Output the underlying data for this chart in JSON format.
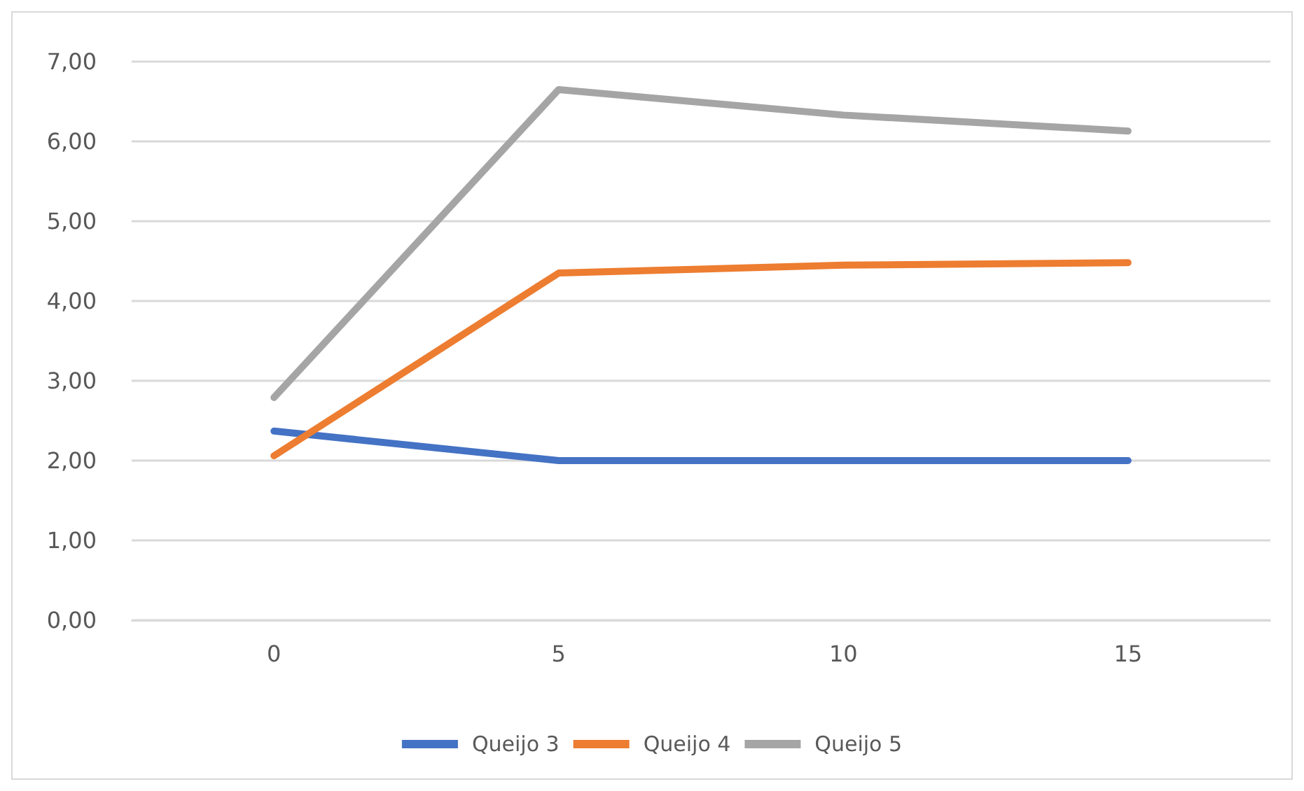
{
  "chart_data": {
    "type": "line",
    "categories": [
      "0",
      "5",
      "10",
      "15"
    ],
    "series": [
      {
        "name": "Queijo 3",
        "color": "#4472c4",
        "values": [
          2.37,
          2.0,
          2.0,
          2.0
        ]
      },
      {
        "name": "Queijo 4",
        "color": "#ed7d31",
        "values": [
          2.06,
          4.35,
          4.45,
          4.48
        ]
      },
      {
        "name": "Queijo 5",
        "color": "#a5a5a5",
        "values": [
          2.79,
          6.65,
          6.33,
          6.13
        ]
      }
    ],
    "ylim": [
      0,
      7
    ],
    "yticks": [
      {
        "value": 0,
        "label": "0,00"
      },
      {
        "value": 1,
        "label": "1,00"
      },
      {
        "value": 2,
        "label": "2,00"
      },
      {
        "value": 3,
        "label": "3,00"
      },
      {
        "value": 4,
        "label": "4,00"
      },
      {
        "value": 5,
        "label": "5,00"
      },
      {
        "value": 6,
        "label": "6,00"
      },
      {
        "value": 7,
        "label": "7,00"
      }
    ],
    "grid": "y",
    "legend": "bottom",
    "marker": "none",
    "line_style": "solid"
  }
}
